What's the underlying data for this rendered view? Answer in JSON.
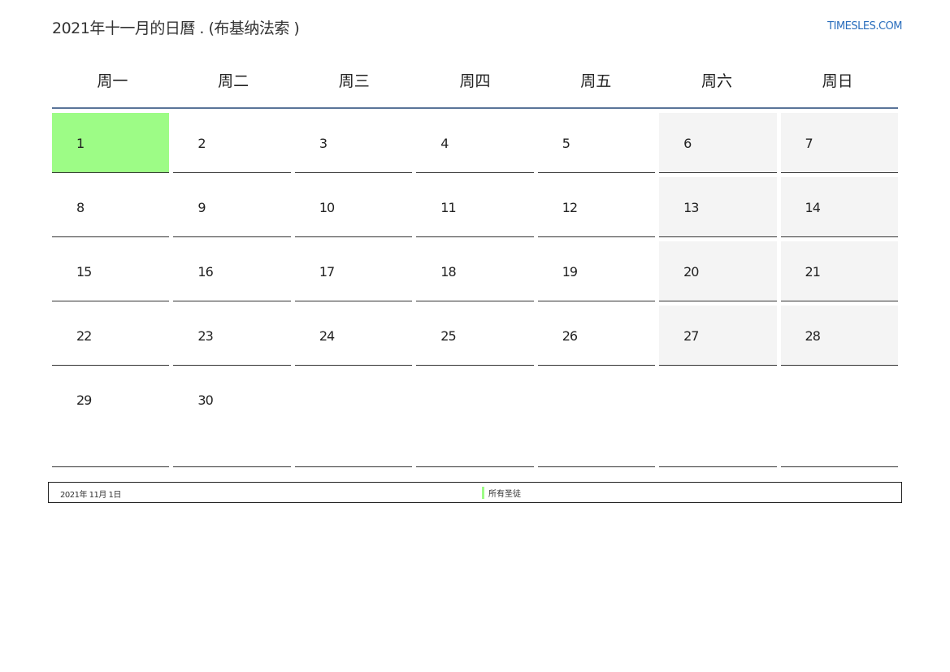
{
  "header": {
    "title": "2021年十一月的日曆 . (布基纳法索 )",
    "site_link": "TIMESLES.COM"
  },
  "weekdays": [
    "周一",
    "周二",
    "周三",
    "周四",
    "周五",
    "周六",
    "周日"
  ],
  "weeks": [
    [
      "1",
      "2",
      "3",
      "4",
      "5",
      "6",
      "7"
    ],
    [
      "8",
      "9",
      "10",
      "11",
      "12",
      "13",
      "14"
    ],
    [
      "15",
      "16",
      "17",
      "18",
      "19",
      "20",
      "21"
    ],
    [
      "22",
      "23",
      "24",
      "25",
      "26",
      "27",
      "28"
    ],
    [
      "29",
      "30",
      "",
      "",
      "",
      "",
      ""
    ]
  ],
  "colors": {
    "holiday": "#9dfc86",
    "weekend": "#f4f4f4",
    "header_line": "#5a7499",
    "link": "#2a6ebd"
  },
  "holidays": [
    {
      "date": "2021年 11月 1日",
      "name": "所有圣徒"
    }
  ]
}
